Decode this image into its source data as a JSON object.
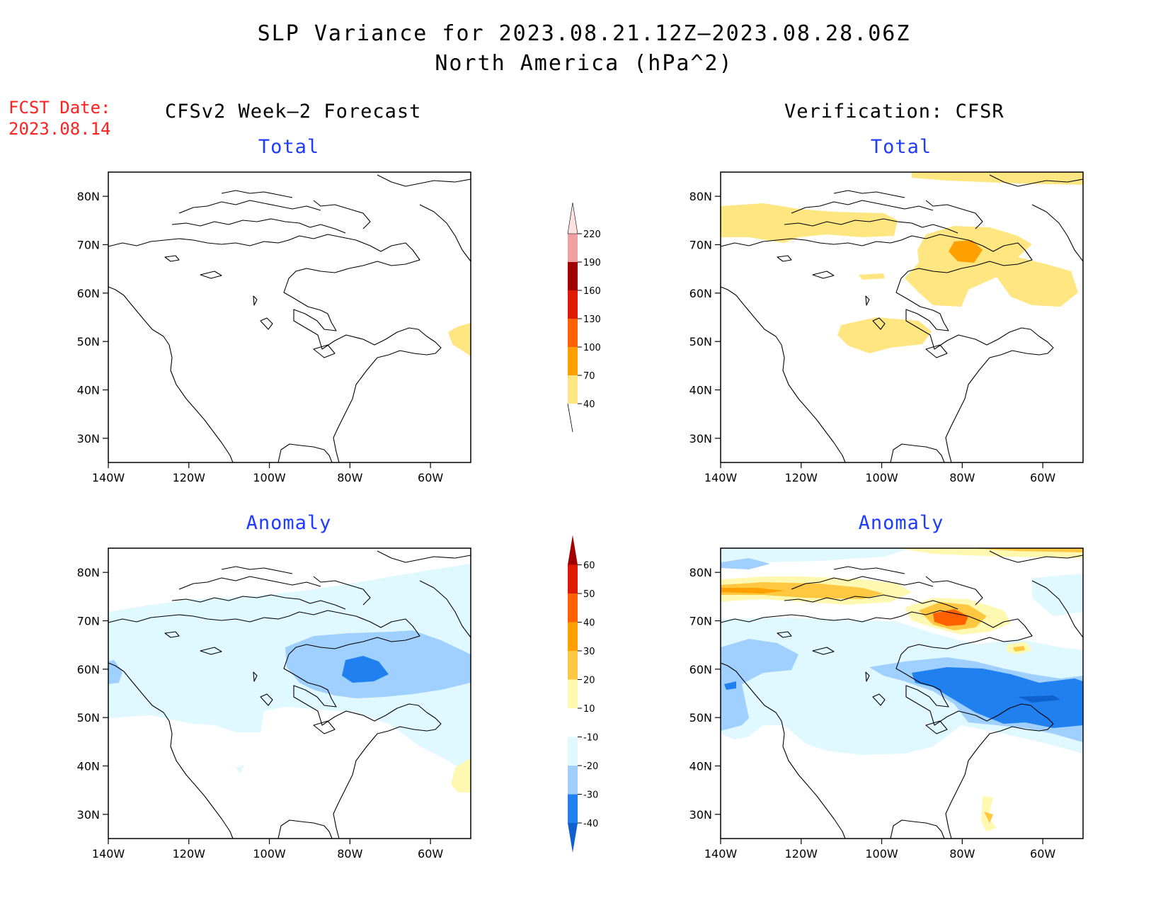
{
  "header": {
    "title_line1": "SLP Variance for 2023.08.21.12Z–2023.08.28.06Z",
    "title_line2": "North America (hPa^2)"
  },
  "fcst_date": {
    "label": "FCST Date:",
    "value": "2023.08.14"
  },
  "columns": {
    "left": "CFSv2 Week–2 Forecast",
    "right": "Verification: CFSR"
  },
  "panel_titles": {
    "fc_total": "Total",
    "ver_total": "Total",
    "fc_anom": "Anomaly",
    "ver_anom": "Anomaly"
  },
  "axes": {
    "lat_ticks": [
      "80N",
      "70N",
      "60N",
      "50N",
      "40N",
      "30N"
    ],
    "lat_values": [
      80,
      70,
      60,
      50,
      40,
      30
    ],
    "lon_ticks": [
      "140W",
      "120W",
      "100W",
      "80W",
      "60W"
    ],
    "lon_values": [
      -140,
      -120,
      -100,
      -80,
      -60
    ],
    "lon_range": [
      -140,
      -50
    ],
    "lat_range": [
      25,
      85
    ]
  },
  "colorbars": {
    "total": {
      "labels": [
        "40",
        "70",
        "100",
        "130",
        "160",
        "190",
        "220"
      ],
      "colors": [
        "#ffe680",
        "#ffa000",
        "#ff6000",
        "#e01a00",
        "#a00000",
        "#f0a0a0",
        "#fde0e0"
      ]
    },
    "anomaly": {
      "labels": [
        "-40",
        "-30",
        "-20",
        "-10",
        "10",
        "20",
        "30",
        "40",
        "50",
        "60"
      ],
      "colors": [
        "#1060d0",
        "#2080f0",
        "#a0d0ff",
        "#e0f8ff",
        "#ffffff",
        "#fff8b0",
        "#ffc840",
        "#ffa000",
        "#ff6000",
        "#e01a00",
        "#a00000"
      ]
    }
  },
  "colors": {
    "title_text": "#000000",
    "fcst_text": "#ff2020",
    "subtitle_text": "#1e3cff"
  }
}
